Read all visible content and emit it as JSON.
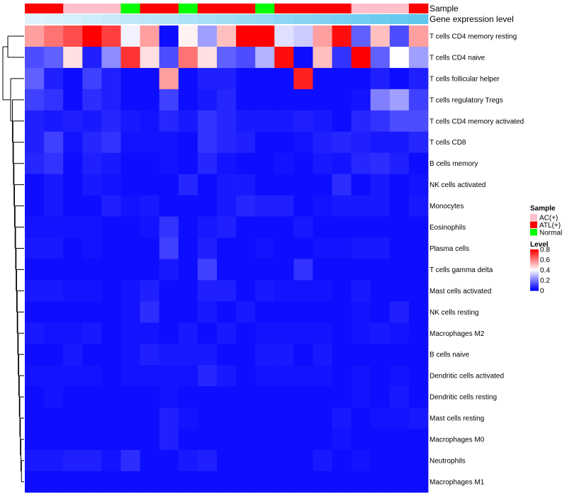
{
  "chart_data": {
    "type": "heatmap",
    "annotation_labels": [
      "Sample",
      "Gene expression level"
    ],
    "rows": [
      "T cells CD4 memory resting",
      "T cells CD4 naive",
      "T cells follicular helper",
      "T cells regulatory  Tregs",
      "T cells CD4 memory activated",
      "T cells CD8",
      "B cells memory",
      "NK cells activated",
      "Monocytes",
      "Eosinophils",
      "Plasma cells",
      "T cells gamma delta",
      "Mast cells activated",
      "NK cells resting",
      "Macrophages M2",
      "B cells naive",
      "Dendritic cells activated",
      "Dendritic cells resting",
      "Mast cells resting",
      "Macrophages M0",
      "Neutrophils",
      "Macrophages M1"
    ],
    "sample_groups": [
      "ATL(+)",
      "ATL(+)",
      "AC(+)",
      "AC(+)",
      "AC(+)",
      "Normal",
      "ATL(+)",
      "ATL(+)",
      "Normal",
      "ATL(+)",
      "ATL(+)",
      "ATL(+)",
      "Normal",
      "ATL(+)",
      "ATL(+)",
      "ATL(+)",
      "ATL(+)",
      "AC(+)",
      "AC(+)",
      "AC(+)",
      "ATL(+)"
    ],
    "gene_expression_level": [
      0.05,
      0.08,
      0.12,
      0.16,
      0.2,
      0.24,
      0.28,
      0.32,
      0.36,
      0.4,
      0.44,
      0.48,
      0.52,
      0.56,
      0.6,
      0.64,
      0.68,
      0.72,
      0.76,
      0.8,
      0.84
    ],
    "values": [
      [
        0.55,
        0.62,
        0.68,
        0.8,
        0.7,
        0.38,
        0.55,
        0.02,
        0.42,
        0.25,
        0.5,
        0.8,
        0.8,
        0.35,
        0.32,
        0.55,
        0.78,
        0.15,
        0.5,
        0.12,
        0.55
      ],
      [
        0.12,
        0.15,
        0.45,
        0.05,
        0.22,
        0.72,
        0.45,
        0.12,
        0.62,
        0.45,
        0.15,
        0.12,
        0.28,
        0.78,
        0.02,
        0.5,
        0.08,
        0.8,
        0.15,
        0.4,
        0.25
      ],
      [
        0.15,
        0.05,
        0.02,
        0.1,
        0.05,
        0.02,
        0.02,
        0.55,
        0.02,
        0.05,
        0.05,
        0.02,
        0.02,
        0.02,
        0.75,
        0.02,
        0.02,
        0.02,
        0.05,
        0.02,
        0.05
      ],
      [
        0.1,
        0.08,
        0.02,
        0.07,
        0.05,
        0.02,
        0.02,
        0.1,
        0.02,
        0.04,
        0.06,
        0.02,
        0.02,
        0.02,
        0.02,
        0.02,
        0.02,
        0.03,
        0.2,
        0.25,
        0.1
      ],
      [
        0.05,
        0.04,
        0.05,
        0.04,
        0.06,
        0.04,
        0.03,
        0.06,
        0.04,
        0.08,
        0.06,
        0.04,
        0.04,
        0.04,
        0.05,
        0.04,
        0.02,
        0.06,
        0.08,
        0.12,
        0.12
      ],
      [
        0.05,
        0.1,
        0.03,
        0.06,
        0.08,
        0.03,
        0.03,
        0.03,
        0.02,
        0.08,
        0.06,
        0.05,
        0.02,
        0.02,
        0.03,
        0.05,
        0.06,
        0.05,
        0.04,
        0.04,
        0.06
      ],
      [
        0.06,
        0.08,
        0.02,
        0.05,
        0.04,
        0.02,
        0.02,
        0.03,
        0.02,
        0.06,
        0.03,
        0.02,
        0.02,
        0.03,
        0.02,
        0.04,
        0.03,
        0.06,
        0.07,
        0.05,
        0.02
      ],
      [
        0.02,
        0.04,
        0.02,
        0.04,
        0.03,
        0.02,
        0.02,
        0.02,
        0.06,
        0.02,
        0.04,
        0.04,
        0.02,
        0.02,
        0.02,
        0.02,
        0.07,
        0.02,
        0.04,
        0.02,
        0.03
      ],
      [
        0.02,
        0.04,
        0.02,
        0.02,
        0.05,
        0.03,
        0.04,
        0.02,
        0.02,
        0.02,
        0.04,
        0.06,
        0.05,
        0.05,
        0.02,
        0.03,
        0.04,
        0.04,
        0.04,
        0.02,
        0.04
      ],
      [
        0.03,
        0.03,
        0.03,
        0.03,
        0.02,
        0.02,
        0.03,
        0.08,
        0.02,
        0.04,
        0.05,
        0.02,
        0.02,
        0.02,
        0.04,
        0.02,
        0.02,
        0.02,
        0.02,
        0.02,
        0.02
      ],
      [
        0.04,
        0.04,
        0.02,
        0.03,
        0.02,
        0.02,
        0.02,
        0.1,
        0.02,
        0.05,
        0.02,
        0.02,
        0.03,
        0.02,
        0.02,
        0.03,
        0.03,
        0.04,
        0.04,
        0.02,
        0.02
      ],
      [
        0.02,
        0.02,
        0.02,
        0.02,
        0.02,
        0.02,
        0.02,
        0.04,
        0.02,
        0.1,
        0.02,
        0.02,
        0.02,
        0.02,
        0.08,
        0.02,
        0.02,
        0.02,
        0.02,
        0.02,
        0.02
      ],
      [
        0.04,
        0.04,
        0.03,
        0.03,
        0.02,
        0.03,
        0.05,
        0.02,
        0.02,
        0.05,
        0.05,
        0.02,
        0.04,
        0.03,
        0.03,
        0.03,
        0.02,
        0.04,
        0.02,
        0.02,
        0.02
      ],
      [
        0.02,
        0.02,
        0.02,
        0.02,
        0.02,
        0.03,
        0.07,
        0.02,
        0.02,
        0.04,
        0.02,
        0.04,
        0.02,
        0.02,
        0.02,
        0.02,
        0.02,
        0.03,
        0.02,
        0.05,
        0.02
      ],
      [
        0.04,
        0.03,
        0.03,
        0.04,
        0.02,
        0.03,
        0.03,
        0.02,
        0.04,
        0.02,
        0.04,
        0.02,
        0.03,
        0.03,
        0.03,
        0.03,
        0.02,
        0.03,
        0.04,
        0.03,
        0.02
      ],
      [
        0.02,
        0.02,
        0.04,
        0.02,
        0.02,
        0.03,
        0.05,
        0.04,
        0.04,
        0.04,
        0.02,
        0.02,
        0.04,
        0.04,
        0.02,
        0.04,
        0.02,
        0.02,
        0.02,
        0.02,
        0.02
      ],
      [
        0.03,
        0.03,
        0.03,
        0.03,
        0.02,
        0.03,
        0.03,
        0.03,
        0.03,
        0.06,
        0.04,
        0.02,
        0.03,
        0.03,
        0.03,
        0.03,
        0.02,
        0.03,
        0.02,
        0.03,
        0.02
      ],
      [
        0.02,
        0.03,
        0.02,
        0.02,
        0.02,
        0.02,
        0.02,
        0.03,
        0.02,
        0.02,
        0.02,
        0.02,
        0.02,
        0.02,
        0.02,
        0.02,
        0.02,
        0.03,
        0.02,
        0.04,
        0.02
      ],
      [
        0.02,
        0.02,
        0.02,
        0.02,
        0.02,
        0.02,
        0.02,
        0.05,
        0.03,
        0.02,
        0.02,
        0.02,
        0.02,
        0.02,
        0.02,
        0.02,
        0.04,
        0.02,
        0.03,
        0.03,
        0.04
      ],
      [
        0.02,
        0.02,
        0.02,
        0.02,
        0.02,
        0.02,
        0.02,
        0.05,
        0.02,
        0.02,
        0.02,
        0.02,
        0.02,
        0.02,
        0.02,
        0.02,
        0.03,
        0.02,
        0.02,
        0.02,
        0.02
      ],
      [
        0.04,
        0.04,
        0.05,
        0.05,
        0.03,
        0.07,
        0.02,
        0.02,
        0.04,
        0.05,
        0.02,
        0.02,
        0.02,
        0.02,
        0.02,
        0.04,
        0.02,
        0.03,
        0.02,
        0.02,
        0.02
      ],
      [
        0.02,
        0.02,
        0.02,
        0.02,
        0.02,
        0.02,
        0.02,
        0.02,
        0.02,
        0.02,
        0.02,
        0.02,
        0.02,
        0.02,
        0.02,
        0.02,
        0.02,
        0.02,
        0.02,
        0.02,
        0.02
      ]
    ],
    "legend": {
      "sample_title": "Sample",
      "sample_items": [
        {
          "label": "AC(+)",
          "color": "#ffc0cb"
        },
        {
          "label": "ATL(+)",
          "color": "#ff0000"
        },
        {
          "label": "Normal",
          "color": "#00ff00"
        }
      ],
      "level_title": "Level",
      "level_ticks": [
        "0.8",
        "0.6",
        "0.4",
        "0.2",
        "0"
      ],
      "level_range": [
        0,
        0.8
      ]
    },
    "colors": {
      "low": "#0000ff",
      "mid": "#ffffff",
      "high": "#ff0000",
      "expr_low": "#e0f3fc",
      "expr_high": "#5fc6ee"
    }
  }
}
